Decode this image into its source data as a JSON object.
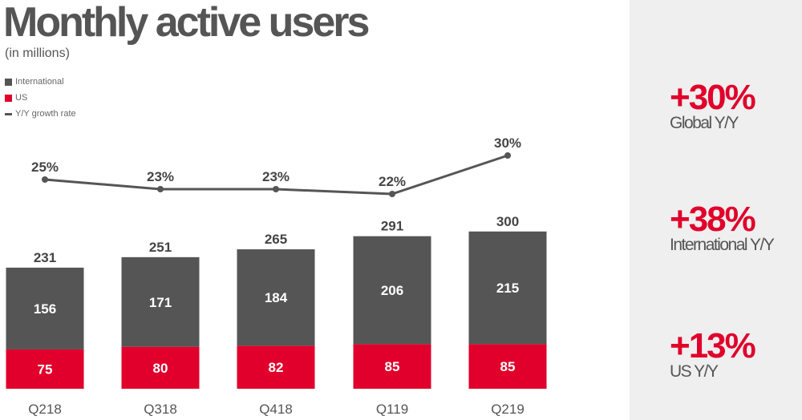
{
  "title": "Monthly active users",
  "subtitle": "(in millions)",
  "colors": {
    "international": "#555555",
    "us": "#e0002b",
    "line": "#555555",
    "accent": "#e0002b"
  },
  "chart_data": {
    "type": "bar",
    "stacked": true,
    "categories": [
      "Q218",
      "Q318",
      "Q418",
      "Q119",
      "Q219"
    ],
    "series": [
      {
        "name": "International",
        "values": [
          156,
          171,
          184,
          206,
          215
        ]
      },
      {
        "name": "US",
        "values": [
          75,
          80,
          82,
          85,
          85
        ]
      }
    ],
    "totals": [
      231,
      251,
      265,
      291,
      300
    ],
    "line_series": {
      "name": "Y/Y growth rate",
      "values": [
        25,
        23,
        23,
        22,
        30
      ],
      "labels": [
        "25%",
        "23%",
        "23%",
        "22%",
        "30%"
      ]
    },
    "legend": [
      "International",
      "US",
      "Y/Y growth rate"
    ],
    "legend_placement": "top-left",
    "grid": false
  },
  "stats": [
    {
      "value": "+30%",
      "label": "Global Y/Y"
    },
    {
      "value": "+38%",
      "label": "International Y/Y"
    },
    {
      "value": "+13%",
      "label": "US Y/Y"
    }
  ]
}
